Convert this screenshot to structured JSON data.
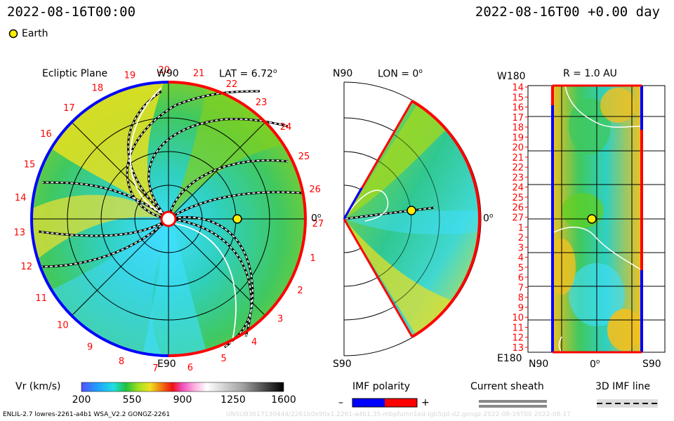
{
  "header": {
    "timestamp_left": "2022-08-16T00:00",
    "timestamp_right": "2022-08-16T00 +0.00 day",
    "legend_earth": "Earth"
  },
  "panels": {
    "ecliptic": {
      "title": "Ecliptic Plane",
      "lat_label": "LAT = 6.72",
      "lat_deg": "o",
      "top_label": "W90",
      "bottom_label": "E90",
      "right_label": "0",
      "right_deg": "o"
    },
    "meridional": {
      "top_label": "N90",
      "lon_label": "LON = 0",
      "lon_deg": "o",
      "bottom_label": "S90",
      "right_label": "0",
      "right_deg": "o"
    },
    "radial": {
      "top_left": "W180",
      "r_label": "R = 1.0 AU",
      "bottom_left": "E180",
      "x_left": "N90",
      "x_mid": "0",
      "x_mid_deg": "o",
      "x_right": "S90"
    }
  },
  "colorbar": {
    "label": "Vr (km/s)",
    "ticks": [
      "200",
      "550",
      "900",
      "1250",
      "1600"
    ]
  },
  "legends": {
    "imf_polarity": "IMF polarity",
    "minus": "–",
    "plus": "+",
    "current_sheath": "Current sheath",
    "imf_line": "3D IMF line"
  },
  "footer": {
    "left": "ENLIL-2.7 lowres-2261-a4b1 WSA_V2.2 GONGZ-2261",
    "right": "UNSUB3617130444/2261b0x90x1.2261-a4b1.35-mbpfumn1ed-lgb5qd-d2.gongz-2022-08-16T00   2022-08-17"
  },
  "chart_data": {
    "type": "heatmap",
    "quantity": "Vr (km/s)",
    "colorbar_range": [
      200,
      1600
    ],
    "colorbar_ticks": [
      200,
      550,
      900,
      1250,
      1600
    ],
    "ecliptic_rotation_labels": [
      "19",
      "20",
      "21",
      "22",
      "23",
      "24",
      "25",
      "26",
      "27",
      "1",
      "2",
      "3",
      "4",
      "5",
      "6",
      "7",
      "8",
      "9",
      "10",
      "11",
      "12",
      "13",
      "14",
      "15",
      "16",
      "17",
      "18"
    ],
    "radial_panel_y_labels": [
      "14",
      "15",
      "16",
      "17",
      "18",
      "19",
      "20",
      "21",
      "22",
      "23",
      "24",
      "25",
      "26",
      "27",
      "1",
      "2",
      "3",
      "4",
      "5",
      "6",
      "7",
      "8",
      "9",
      "10",
      "11",
      "12",
      "13"
    ],
    "colors": {
      "positive_polarity": "#ff0000",
      "negative_polarity": "#0000ff",
      "earth": "#ffee00"
    }
  }
}
